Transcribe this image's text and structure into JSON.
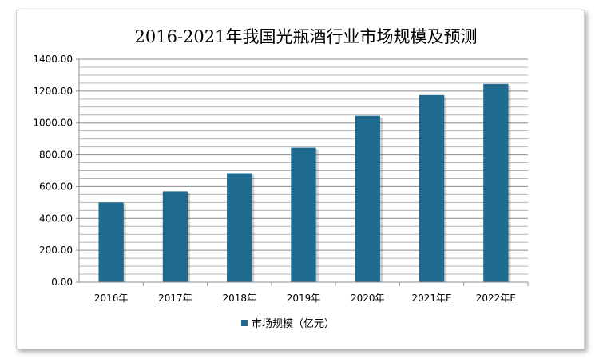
{
  "chart_data": {
    "type": "bar",
    "title": "2016-2021年我国光瓶酒行业市场规模及预测",
    "categories": [
      "2016年",
      "2017年",
      "2018年",
      "2019年",
      "2020年",
      "2021年E",
      "2022年E"
    ],
    "series": [
      {
        "name": "市场规模（亿元）",
        "values": [
          500,
          570,
          685,
          845,
          1045,
          1175,
          1245
        ],
        "color": "#1f6b8f"
      }
    ],
    "y_ticks": [
      "0.00",
      "200.00",
      "400.00",
      "600.00",
      "800.00",
      "1000.00",
      "1200.00",
      "1400.00"
    ],
    "ylim": [
      0,
      1400
    ],
    "xlabel": "",
    "ylabel": "",
    "grid": true,
    "legend": "bottom"
  }
}
